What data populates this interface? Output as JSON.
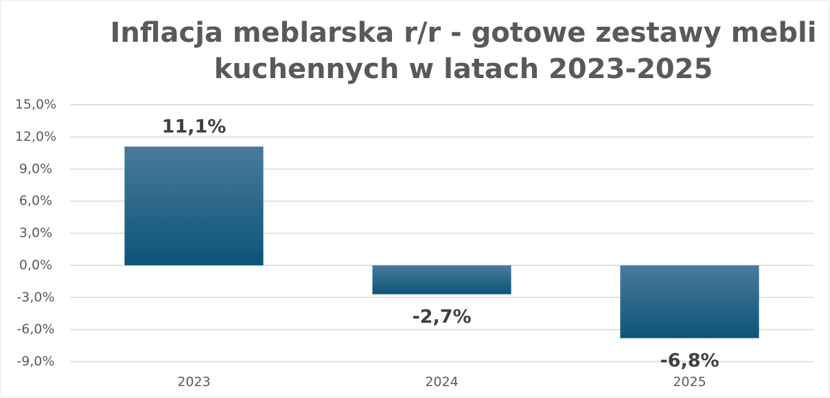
{
  "chart_data": {
    "type": "bar",
    "title": [
      "Inflacja meblarska r/r - gotowe zestawy mebli",
      "kuchennych w latach 2023-2025"
    ],
    "categories": [
      "2023",
      "2024",
      "2025"
    ],
    "values": [
      11.1,
      -2.7,
      -6.8
    ],
    "value_labels": [
      "11,1%",
      "-2,7%",
      "-6,8%"
    ],
    "color": "#0b5578",
    "ylim": [
      -9,
      15
    ],
    "yticks": [
      {
        "value": -9,
        "label": "-9,0%"
      },
      {
        "value": -6,
        "label": "-6,0%"
      },
      {
        "value": -3,
        "label": "-3,0%"
      },
      {
        "value": 0,
        "label": "0,0%"
      },
      {
        "value": 3,
        "label": "3,0%"
      },
      {
        "value": 6,
        "label": "6,0%"
      },
      {
        "value": 9,
        "label": "9,0%"
      },
      {
        "value": 12,
        "label": "12,0%"
      },
      {
        "value": 15,
        "label": "15,0%"
      }
    ],
    "grid": true
  }
}
